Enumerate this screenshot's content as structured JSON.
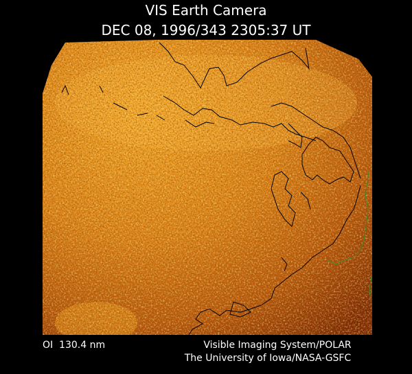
{
  "title": "VIS Earth Camera",
  "subtitle": "DEC 08, 1996/343 2305:37 UT",
  "footer": {
    "left": "OI  130.4 nm",
    "right_line1": "Visible Imaging System/POLAR",
    "right_line2": "The University of Iowa/NASA-GSFC"
  }
}
